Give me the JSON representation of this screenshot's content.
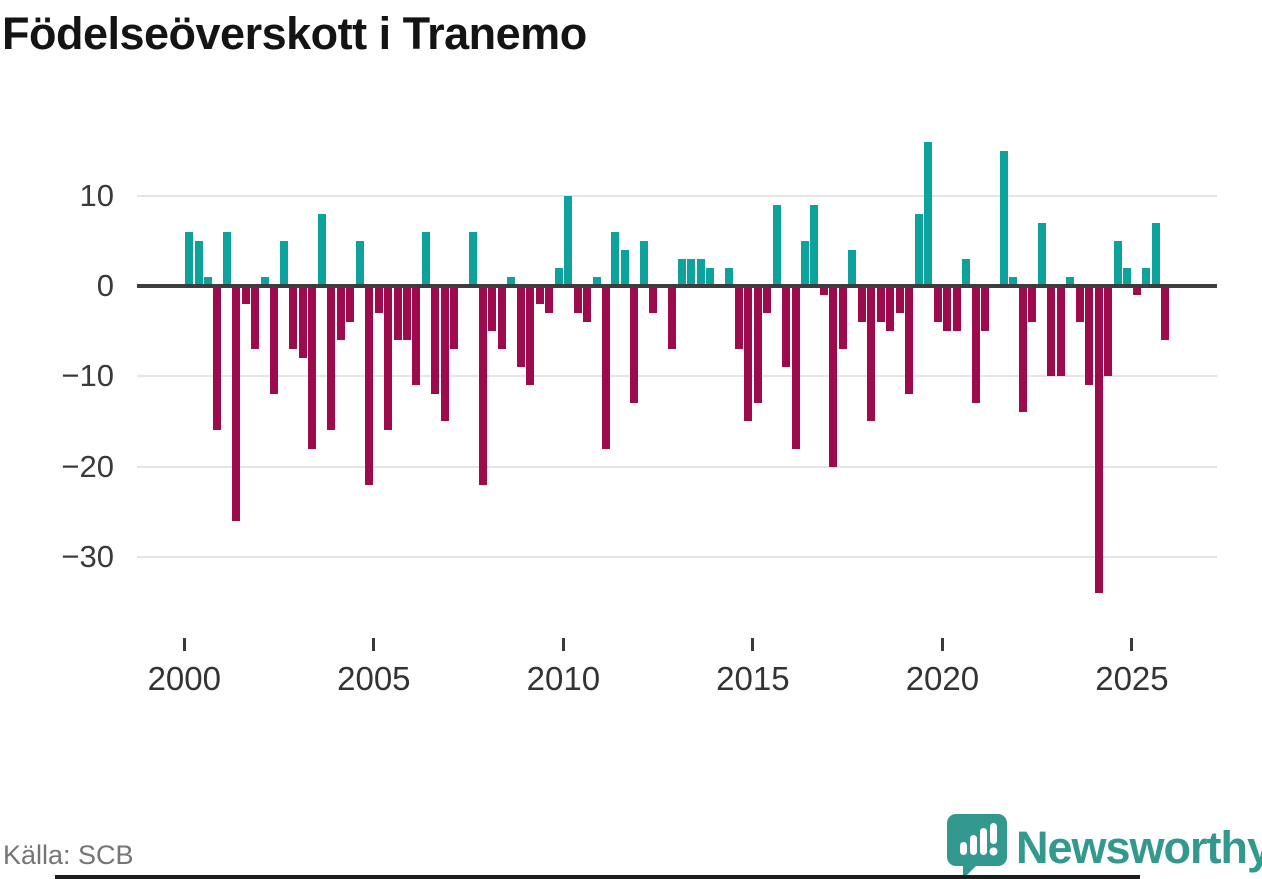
{
  "title": "Födelseöverskott i Tranemo",
  "source": "Källa: SCB",
  "logo": {
    "text": "Newsworthy"
  },
  "chart_data": {
    "type": "bar",
    "title": "Födelseöverskott i Tranemo",
    "period": "quarterly",
    "xlabel": "",
    "ylabel": "",
    "x_axis": {
      "tick_years": [
        2000,
        2005,
        2010,
        2015,
        2020,
        2025
      ]
    },
    "y_axis": {
      "tick_values": [
        10,
        0,
        -10,
        -20,
        -30
      ],
      "tick_labels": [
        "10",
        "0",
        "−10",
        "−20",
        "−30"
      ],
      "gridline_values": [
        10,
        -10,
        -20,
        -30
      ],
      "ylim": [
        -35,
        17
      ]
    },
    "legend": "none",
    "colors": {
      "positive": "#0da29b",
      "negative": "#9d0b4c"
    },
    "years": [
      {
        "year": 2000,
        "values": [
          6,
          5,
          1,
          -16
        ]
      },
      {
        "year": 2001,
        "values": [
          6,
          -26,
          -2,
          -7
        ]
      },
      {
        "year": 2002,
        "values": [
          1,
          -12,
          5,
          -7
        ]
      },
      {
        "year": 2003,
        "values": [
          -8,
          -18,
          8,
          -16
        ]
      },
      {
        "year": 2004,
        "values": [
          -6,
          -4,
          5,
          -22
        ]
      },
      {
        "year": 2005,
        "values": [
          -3,
          -16,
          -6,
          -6
        ]
      },
      {
        "year": 2006,
        "values": [
          -11,
          6,
          -12,
          -15
        ]
      },
      {
        "year": 2007,
        "values": [
          -7,
          0,
          6,
          -22
        ]
      },
      {
        "year": 2008,
        "values": [
          -5,
          -7,
          1,
          -9
        ]
      },
      {
        "year": 2009,
        "values": [
          -11,
          -2,
          -3,
          2
        ]
      },
      {
        "year": 2010,
        "values": [
          10,
          -3,
          -4,
          1
        ]
      },
      {
        "year": 2011,
        "values": [
          -18,
          6,
          4,
          -13
        ]
      },
      {
        "year": 2012,
        "values": [
          5,
          -3,
          0,
          -7
        ]
      },
      {
        "year": 2013,
        "values": [
          3,
          3,
          3,
          2
        ]
      },
      {
        "year": 2014,
        "values": [
          0,
          2,
          -7,
          -15
        ]
      },
      {
        "year": 2015,
        "values": [
          -13,
          -3,
          9,
          -9
        ]
      },
      {
        "year": 2016,
        "values": [
          -18,
          5,
          9,
          -1
        ]
      },
      {
        "year": 2017,
        "values": [
          -20,
          -7,
          4,
          -4
        ]
      },
      {
        "year": 2018,
        "values": [
          -15,
          -4,
          -5,
          -3
        ]
      },
      {
        "year": 2019,
        "values": [
          -12,
          8,
          16,
          -4
        ]
      },
      {
        "year": 2020,
        "values": [
          -5,
          -5,
          3,
          -13
        ]
      },
      {
        "year": 2021,
        "values": [
          -5,
          0,
          15,
          1
        ]
      },
      {
        "year": 2022,
        "values": [
          -14,
          -4,
          7,
          -10
        ]
      },
      {
        "year": 2023,
        "values": [
          -10,
          1,
          -4,
          -11
        ]
      },
      {
        "year": 2024,
        "values": [
          -34,
          -10,
          5,
          2
        ]
      },
      {
        "year": 2025,
        "values": [
          -1,
          2,
          7,
          -6
        ]
      }
    ]
  }
}
